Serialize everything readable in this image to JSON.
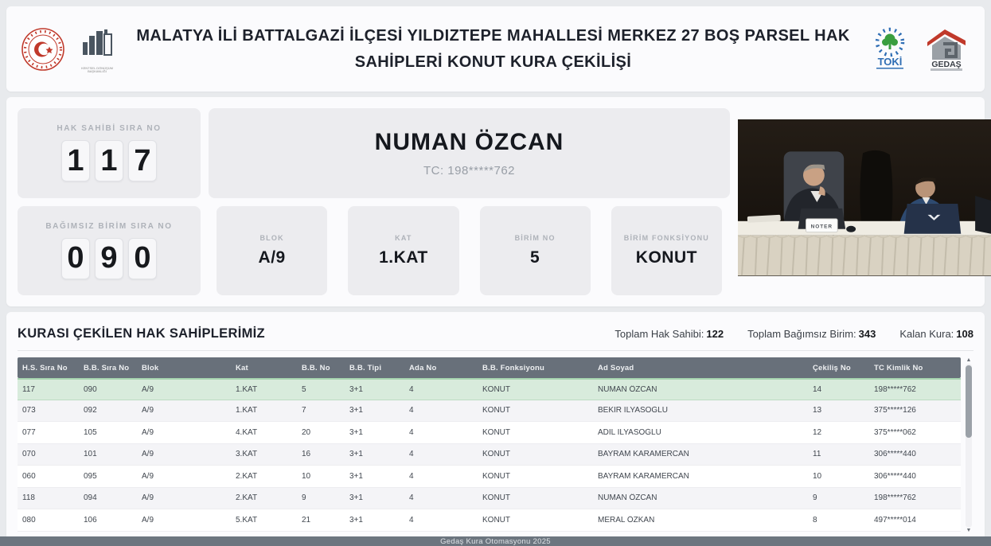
{
  "header": {
    "title": "MALATYA İLİ BATTALGAZİ İLÇESİ YILDIZTEPE MAHALLESİ MERKEZ 27 BOŞ PARSEL HAK SAHİPLERİ KONUT KURA ÇEKİLİŞİ",
    "logos": {
      "ministry": "ministry-emblem",
      "housing": "housing-development-logo",
      "toki_label": "TOKİ",
      "gedas_label": "GEDAŞ"
    }
  },
  "current_draw": {
    "hak_sahibi": {
      "label": "HAK SAHİBİ SIRA NO",
      "digits": [
        "1",
        "1",
        "7"
      ]
    },
    "bagimsiz_birim": {
      "label": "BAĞIMSIZ BİRİM SIRA NO",
      "digits": [
        "0",
        "9",
        "0"
      ]
    },
    "winner_name": "NUMAN ÖZCAN",
    "winner_tc": "TC: 198*****762",
    "details": [
      {
        "label": "BLOK",
        "value": "A/9"
      },
      {
        "label": "KAT",
        "value": "1.KAT"
      },
      {
        "label": "BİRİM NO",
        "value": "5"
      },
      {
        "label": "BİRİM FONKSİYONU",
        "value": "KONUT"
      }
    ]
  },
  "video": {
    "placard": "NOTER"
  },
  "table": {
    "title": "KURASI ÇEKİLEN HAK SAHİPLERİMİZ",
    "stats": [
      {
        "label": "Toplam Hak Sahibi:",
        "value": "122"
      },
      {
        "label": "Toplam Bağımsız Birim:",
        "value": "343"
      },
      {
        "label": "Kalan Kura:",
        "value": "108"
      }
    ],
    "columns": [
      "H.S. Sıra No",
      "B.B. Sıra No",
      "Blok",
      "Kat",
      "B.B. No",
      "B.B. Tipi",
      "Ada No",
      "B.B. Fonksiyonu",
      "Ad Soyad",
      "Çekiliş No",
      "TC Kimlik No"
    ],
    "rows": [
      [
        "117",
        "090",
        "A/9",
        "1.KAT",
        "5",
        "3+1",
        "4",
        "KONUT",
        "NUMAN ÖZCAN",
        "14",
        "198*****762"
      ],
      [
        "073",
        "092",
        "A/9",
        "1.KAT",
        "7",
        "3+1",
        "4",
        "KONUT",
        "BEKİR İLYASOĞLU",
        "13",
        "375*****126"
      ],
      [
        "077",
        "105",
        "A/9",
        "4.KAT",
        "20",
        "3+1",
        "4",
        "KONUT",
        "ADİL İLYASOĞLU",
        "12",
        "375*****062"
      ],
      [
        "070",
        "101",
        "A/9",
        "3.KAT",
        "16",
        "3+1",
        "4",
        "KONUT",
        "BAYRAM KARAMERCAN",
        "11",
        "306*****440"
      ],
      [
        "060",
        "095",
        "A/9",
        "2.KAT",
        "10",
        "3+1",
        "4",
        "KONUT",
        "BAYRAM KARAMERCAN",
        "10",
        "306*****440"
      ],
      [
        "118",
        "094",
        "A/9",
        "2.KAT",
        "9",
        "3+1",
        "4",
        "KONUT",
        "NUMAN ÖZCAN",
        "9",
        "198*****762"
      ],
      [
        "080",
        "106",
        "A/9",
        "5.KAT",
        "21",
        "3+1",
        "4",
        "KONUT",
        "MERAL ÖZKAN",
        "8",
        "497*****014"
      ]
    ]
  },
  "footer": {
    "text": "Gedaş Kura Otomasyonu 2025"
  },
  "colors": {
    "highlight_row": "#d8ebdc",
    "table_header": "#68707a",
    "footer_bar": "#6c757f",
    "toki_blue": "#2e6db4",
    "toki_green": "#3a9e3f",
    "emblem_red": "#c0392b"
  }
}
